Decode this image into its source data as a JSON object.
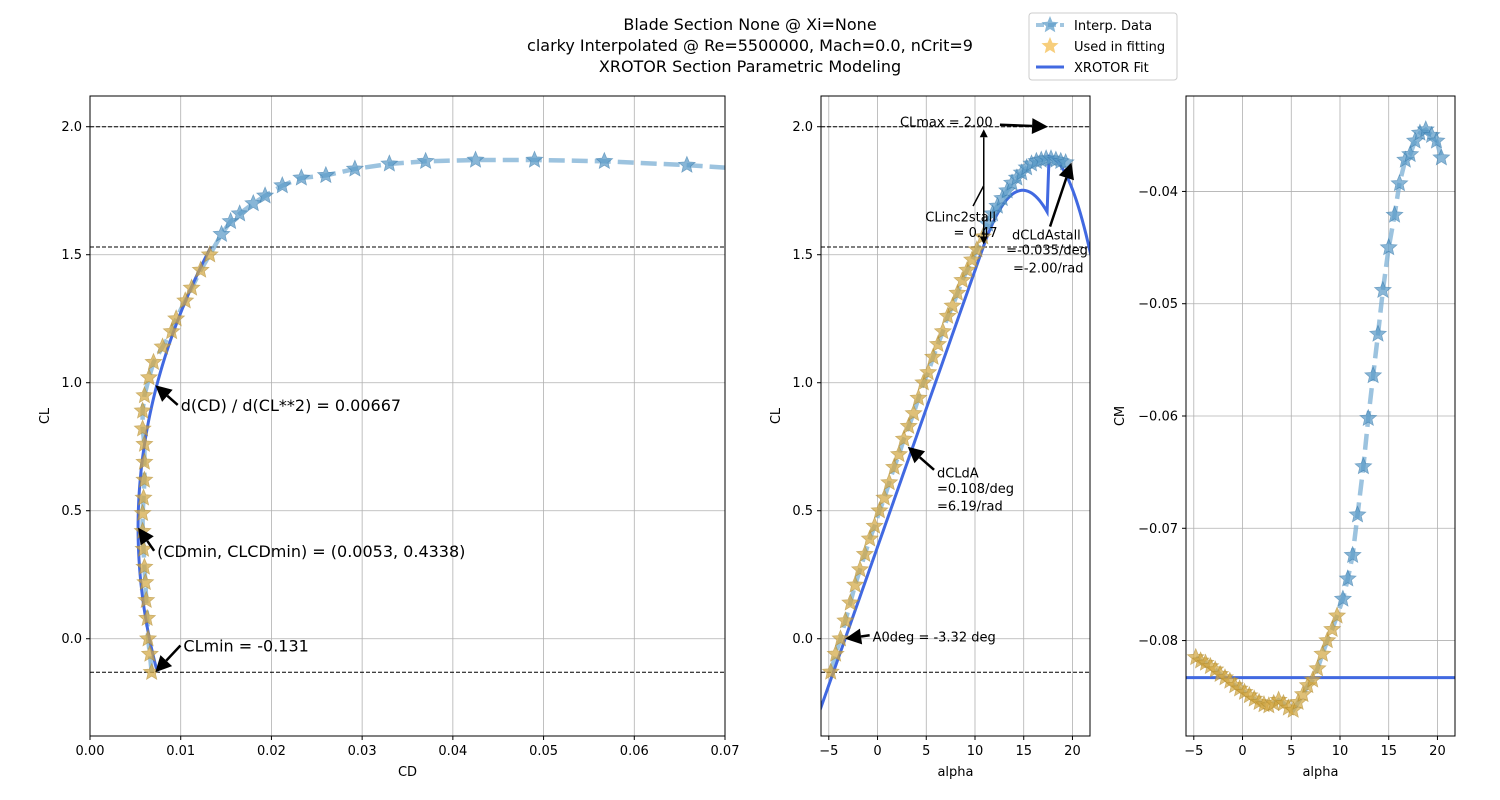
{
  "title_lines": [
    "Blade Section None @ Xi=None",
    "clarky Interpolated @ Re=5500000, Mach=0.0, nCrit=9",
    "XROTOR Section Parametric Modeling"
  ],
  "legend": {
    "interp": "Interp. Data",
    "fitting": "Used in fitting",
    "fit": "XROTOR Fit"
  },
  "colors": {
    "interp": "#7bafd4",
    "interp_marker": "#5b9bc8",
    "fitting": "#d4a843",
    "fit": "#4169e1"
  },
  "chart_data": [
    {
      "type": "line",
      "name": "drag-polar",
      "xlabel": "CD",
      "ylabel": "CL",
      "xlim": [
        0.0,
        0.07
      ],
      "ylim": [
        -0.38,
        2.12
      ],
      "xticks": [
        0.0,
        0.01,
        0.02,
        0.03,
        0.04,
        0.05,
        0.06,
        0.07
      ],
      "xtick_labels": [
        "0.00",
        "0.01",
        "0.02",
        "0.03",
        "0.04",
        "0.05",
        "0.06",
        "0.07"
      ],
      "yticks": [
        0.0,
        0.5,
        1.0,
        1.5,
        2.0
      ],
      "ytick_labels": [
        "0.0",
        "0.5",
        "1.0",
        "1.5",
        "2.0"
      ],
      "grid": true,
      "hlines": [
        2.0,
        1.53,
        -0.131
      ],
      "interp_points": [
        [
          0.0068,
          -0.131
        ],
        [
          0.0066,
          -0.06
        ],
        [
          0.0064,
          0.0
        ],
        [
          0.0063,
          0.08
        ],
        [
          0.0062,
          0.15
        ],
        [
          0.0061,
          0.22
        ],
        [
          0.006,
          0.28
        ],
        [
          0.0059,
          0.35
        ],
        [
          0.0058,
          0.42
        ],
        [
          0.0058,
          0.49
        ],
        [
          0.0059,
          0.55
        ],
        [
          0.006,
          0.62
        ],
        [
          0.006,
          0.69
        ],
        [
          0.006,
          0.76
        ],
        [
          0.0058,
          0.82
        ],
        [
          0.0058,
          0.89
        ],
        [
          0.006,
          0.95
        ],
        [
          0.0065,
          1.02
        ],
        [
          0.007,
          1.08
        ],
        [
          0.008,
          1.14
        ],
        [
          0.009,
          1.2
        ],
        [
          0.0095,
          1.25
        ],
        [
          0.0105,
          1.32
        ],
        [
          0.0112,
          1.37
        ],
        [
          0.0122,
          1.44
        ],
        [
          0.0132,
          1.5
        ],
        [
          0.0145,
          1.58
        ],
        [
          0.0155,
          1.63
        ],
        [
          0.0165,
          1.66
        ],
        [
          0.018,
          1.7
        ],
        [
          0.0193,
          1.73
        ],
        [
          0.0212,
          1.77
        ],
        [
          0.0233,
          1.8
        ],
        [
          0.026,
          1.81
        ],
        [
          0.0292,
          1.835
        ],
        [
          0.033,
          1.855
        ],
        [
          0.037,
          1.865
        ],
        [
          0.0425,
          1.87
        ],
        [
          0.049,
          1.87
        ],
        [
          0.0567,
          1.865
        ],
        [
          0.0658,
          1.85
        ]
      ],
      "interp_line_end": [
        0.07,
        1.84
      ],
      "fitting_count": 26,
      "fit_curve": {
        "cd0": 0.0053,
        "cl_cd0": 0.4338,
        "dcd_dcl2": 0.00667,
        "cl_min": -0.131,
        "cl_max_fit": 1.53
      },
      "annotations": [
        {
          "text": "d(CD) / d(CL**2) = 0.00667",
          "point": [
            0.0072,
            0.99
          ],
          "text_at": [
            0.01,
            0.89
          ]
        },
        {
          "text": "(CDmin, CLCDmin) = (0.0053, 0.4338)",
          "point": [
            0.0053,
            0.4338
          ],
          "text_at": [
            0.0074,
            0.32
          ]
        },
        {
          "text": "CLmin = -0.131",
          "point": [
            0.0072,
            -0.131
          ],
          "text_at": [
            0.0103,
            -0.05
          ]
        }
      ]
    },
    {
      "type": "line",
      "name": "lift-curve",
      "xlabel": "alpha",
      "ylabel": "CL",
      "xlim": [
        -5.8,
        21.8
      ],
      "ylim": [
        -0.38,
        2.12
      ],
      "xticks": [
        -5,
        0,
        5,
        10,
        15,
        20
      ],
      "xtick_labels": [
        "−5",
        "0",
        "5",
        "10",
        "15",
        "20"
      ],
      "yticks": [
        0.0,
        0.5,
        1.0,
        1.5,
        2.0
      ],
      "ytick_labels": [
        "0.0",
        "0.5",
        "1.0",
        "1.5",
        "2.0"
      ],
      "grid": true,
      "hlines": [
        2.0,
        1.53,
        -0.131
      ],
      "interp_points": [
        [
          -4.8,
          -0.13
        ],
        [
          -4.3,
          -0.06
        ],
        [
          -3.8,
          0.0
        ],
        [
          -3.3,
          0.07
        ],
        [
          -2.8,
          0.14
        ],
        [
          -2.3,
          0.21
        ],
        [
          -1.8,
          0.27
        ],
        [
          -1.3,
          0.33
        ],
        [
          -0.8,
          0.39
        ],
        [
          -0.3,
          0.44
        ],
        [
          0.2,
          0.5
        ],
        [
          0.7,
          0.55
        ],
        [
          1.2,
          0.61
        ],
        [
          1.7,
          0.67
        ],
        [
          2.2,
          0.72
        ],
        [
          2.7,
          0.78
        ],
        [
          3.2,
          0.83
        ],
        [
          3.7,
          0.88
        ],
        [
          4.2,
          0.94
        ],
        [
          4.7,
          1.0
        ],
        [
          5.2,
          1.04
        ],
        [
          5.7,
          1.1
        ],
        [
          6.2,
          1.15
        ],
        [
          6.7,
          1.2
        ],
        [
          7.2,
          1.26
        ],
        [
          7.7,
          1.3
        ],
        [
          8.2,
          1.35
        ],
        [
          8.7,
          1.4
        ],
        [
          9.2,
          1.44
        ],
        [
          9.7,
          1.48
        ],
        [
          10.2,
          1.52
        ],
        [
          10.8,
          1.57
        ],
        [
          11.3,
          1.62
        ],
        [
          11.8,
          1.66
        ],
        [
          12.3,
          1.69
        ],
        [
          12.8,
          1.72
        ],
        [
          13.3,
          1.75
        ],
        [
          13.8,
          1.78
        ],
        [
          14.3,
          1.8
        ],
        [
          14.8,
          1.82
        ],
        [
          15.3,
          1.84
        ],
        [
          15.8,
          1.855
        ],
        [
          16.3,
          1.865
        ],
        [
          16.8,
          1.87
        ],
        [
          17.3,
          1.875
        ],
        [
          17.8,
          1.875
        ],
        [
          18.3,
          1.87
        ],
        [
          18.8,
          1.865
        ],
        [
          19.3,
          1.86
        ]
      ],
      "fitting_count": 32,
      "fit_curve": {
        "a0_deg": -3.32,
        "dcl_da_per_deg": 0.108,
        "cl_max": 2.0,
        "clinc2stall": 0.47,
        "dcl_da_stall_per_deg": -0.035
      },
      "annotations": [
        {
          "text": "CLmax = 2.00",
          "point": [
            17.5,
            2.0
          ],
          "text_at": [
            2.3,
            2.0
          ]
        },
        {
          "text": "CLinc2stall",
          "text_at": [
            4.9,
            1.63
          ]
        },
        {
          "text": "= 0.47",
          "text_at": [
            7.8,
            1.57
          ]
        },
        {
          "text": "dCLdAstall",
          "text_at": [
            13.8,
            1.56
          ]
        },
        {
          "text": "=-0.035/deg",
          "text_at": [
            13.2,
            1.5
          ]
        },
        {
          "text": "=-2.00/rad",
          "text_at": [
            13.9,
            1.43
          ]
        },
        {
          "text": "dCLdA",
          "text_at": [
            6.1,
            0.63
          ]
        },
        {
          "text": "=0.108/deg",
          "text_at": [
            6.1,
            0.57
          ]
        },
        {
          "text": "=6.19/rad",
          "text_at": [
            6.1,
            0.5
          ]
        },
        {
          "text": "A0deg = -3.32 deg",
          "point": [
            -3.32,
            0.0
          ],
          "text_at": [
            -0.5,
            -0.01
          ]
        }
      ]
    },
    {
      "type": "line",
      "name": "moment-curve",
      "xlabel": "alpha",
      "ylabel": "CM",
      "xlim": [
        -5.8,
        21.8
      ],
      "ylim": [
        -0.0885,
        -0.0315
      ],
      "xticks": [
        -5,
        0,
        5,
        10,
        15,
        20
      ],
      "xtick_labels": [
        "−5",
        "0",
        "5",
        "10",
        "15",
        "20"
      ],
      "yticks": [
        -0.08,
        -0.07,
        -0.06,
        -0.05,
        -0.04
      ],
      "ytick_labels": [
        "−0.08",
        "−0.07",
        "−0.06",
        "−0.05",
        "−0.04"
      ],
      "grid": true,
      "fit_line_cm": -0.0833,
      "interp_points": [
        [
          -4.8,
          -0.0815
        ],
        [
          -4.3,
          -0.0818
        ],
        [
          -3.8,
          -0.082
        ],
        [
          -3.3,
          -0.0823
        ],
        [
          -2.8,
          -0.0826
        ],
        [
          -2.3,
          -0.083
        ],
        [
          -1.8,
          -0.0833
        ],
        [
          -1.3,
          -0.0836
        ],
        [
          -0.8,
          -0.084
        ],
        [
          -0.3,
          -0.0843
        ],
        [
          0.2,
          -0.0846
        ],
        [
          0.7,
          -0.0849
        ],
        [
          1.2,
          -0.0852
        ],
        [
          1.7,
          -0.0855
        ],
        [
          2.2,
          -0.0857
        ],
        [
          2.7,
          -0.0858
        ],
        [
          3.2,
          -0.0856
        ],
        [
          3.7,
          -0.0853
        ],
        [
          4.2,
          -0.0856
        ],
        [
          4.7,
          -0.086
        ],
        [
          5.2,
          -0.0862
        ],
        [
          5.7,
          -0.0855
        ],
        [
          6.2,
          -0.0848
        ],
        [
          6.7,
          -0.084
        ],
        [
          7.2,
          -0.0835
        ],
        [
          7.7,
          -0.0825
        ],
        [
          8.2,
          -0.0812
        ],
        [
          8.7,
          -0.08
        ],
        [
          9.2,
          -0.079
        ],
        [
          9.7,
          -0.0778
        ],
        [
          10.3,
          -0.0763
        ],
        [
          10.8,
          -0.0745
        ],
        [
          11.3,
          -0.0724
        ],
        [
          11.8,
          -0.0688
        ],
        [
          12.4,
          -0.0645
        ],
        [
          12.9,
          -0.0602
        ],
        [
          13.4,
          -0.0564
        ],
        [
          13.9,
          -0.0527
        ],
        [
          14.4,
          -0.0488
        ],
        [
          15.0,
          -0.045
        ],
        [
          15.6,
          -0.0421
        ],
        [
          16.1,
          -0.0393
        ],
        [
          16.7,
          -0.0372
        ],
        [
          17.2,
          -0.0367
        ],
        [
          17.7,
          -0.0355
        ],
        [
          18.2,
          -0.0348
        ],
        [
          18.8,
          -0.0345
        ],
        [
          19.4,
          -0.035
        ],
        [
          19.9,
          -0.0355
        ],
        [
          20.4,
          -0.037
        ]
      ],
      "fitting_count": 30
    }
  ]
}
